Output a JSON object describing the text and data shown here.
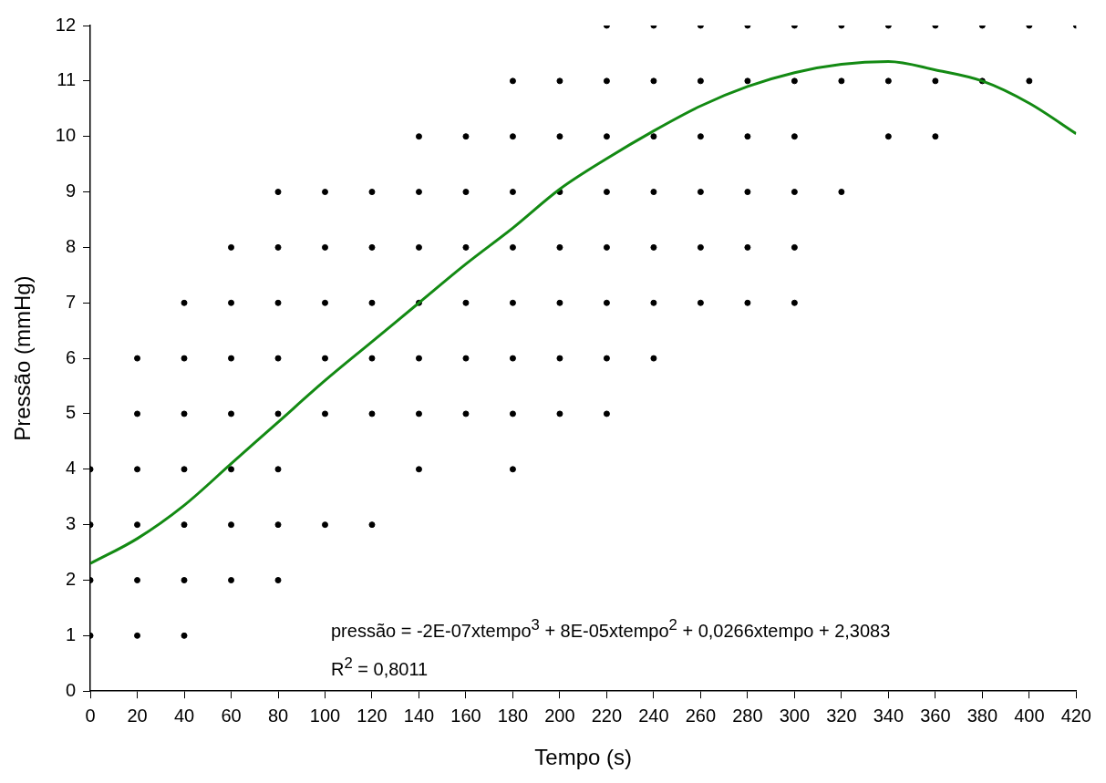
{
  "chart_data": {
    "type": "scatter",
    "xlabel": "Tempo (s)",
    "ylabel": "Pressão (mmHg)",
    "xlim": [
      0,
      420
    ],
    "xticks": [
      0,
      20,
      40,
      60,
      80,
      100,
      120,
      140,
      160,
      180,
      200,
      220,
      240,
      260,
      280,
      300,
      320,
      340,
      360,
      380,
      400,
      420
    ],
    "ylim": [
      0,
      12
    ],
    "yticks": [
      0,
      1,
      2,
      3,
      4,
      5,
      6,
      7,
      8,
      9,
      10,
      11,
      12
    ],
    "grid": false,
    "legend": false,
    "annotations": [
      "pressão = -2E-07xtempo$^{3}$ + 8E-05xtempo$^{2}$ + 0,0266xtempo + 2,3083",
      "R$^{2}$ = 0,8011"
    ],
    "series": [
      {
        "type": "scatter",
        "marker": "circle",
        "color": "#000000",
        "x": [
          0,
          0,
          0,
          0,
          20,
          20,
          20,
          20,
          20,
          20,
          40,
          40,
          40,
          40,
          40,
          40,
          40,
          60,
          60,
          60,
          60,
          60,
          60,
          60,
          80,
          80,
          80,
          80,
          80,
          80,
          80,
          80,
          100,
          100,
          100,
          100,
          100,
          100,
          120,
          120,
          120,
          120,
          120,
          120,
          140,
          140,
          140,
          140,
          140,
          140,
          140,
          160,
          160,
          160,
          160,
          160,
          160,
          180,
          180,
          180,
          180,
          180,
          180,
          180,
          180,
          200,
          200,
          200,
          200,
          200,
          200,
          200,
          220,
          220,
          220,
          220,
          220,
          220,
          220,
          220,
          240,
          240,
          240,
          240,
          240,
          240,
          240,
          260,
          260,
          260,
          260,
          260,
          260,
          280,
          280,
          280,
          280,
          280,
          280,
          300,
          300,
          300,
          300,
          300,
          300,
          320,
          320,
          320,
          340,
          340,
          340,
          360,
          360,
          360,
          380,
          380,
          400,
          400,
          420
        ],
        "values": [
          1,
          2,
          3,
          4,
          1,
          2,
          3,
          4,
          5,
          6,
          1,
          2,
          3,
          4,
          5,
          6,
          7,
          2,
          3,
          4,
          5,
          6,
          7,
          8,
          2,
          3,
          4,
          5,
          6,
          7,
          8,
          9,
          3,
          5,
          6,
          7,
          8,
          9,
          3,
          5,
          6,
          7,
          8,
          9,
          4,
          5,
          6,
          7,
          8,
          9,
          10,
          5,
          6,
          7,
          8,
          9,
          10,
          4,
          5,
          6,
          7,
          8,
          9,
          10,
          11,
          5,
          6,
          7,
          8,
          9,
          10,
          11,
          5,
          6,
          7,
          8,
          9,
          10,
          11,
          12,
          6,
          7,
          8,
          9,
          10,
          11,
          12,
          7,
          8,
          9,
          10,
          11,
          12,
          7,
          8,
          9,
          10,
          11,
          12,
          7,
          8,
          9,
          10,
          11,
          12,
          9,
          11,
          12,
          10,
          11,
          12,
          10,
          11,
          12,
          11,
          12,
          11,
          12,
          12
        ]
      },
      {
        "type": "line",
        "marker": "none",
        "color": "#138a13",
        "line_style": "solid",
        "x": [
          0,
          20,
          40,
          60,
          80,
          100,
          120,
          140,
          160,
          180,
          200,
          220,
          240,
          260,
          280,
          300,
          320,
          340,
          360,
          380,
          400,
          420
        ],
        "values": [
          2.3,
          2.75,
          3.35,
          4.1,
          4.85,
          5.6,
          6.3,
          7.0,
          7.7,
          8.35,
          9.05,
          9.6,
          10.1,
          10.55,
          10.9,
          11.15,
          11.3,
          11.35,
          11.2,
          11.0,
          10.6,
          10.05
        ]
      }
    ]
  }
}
